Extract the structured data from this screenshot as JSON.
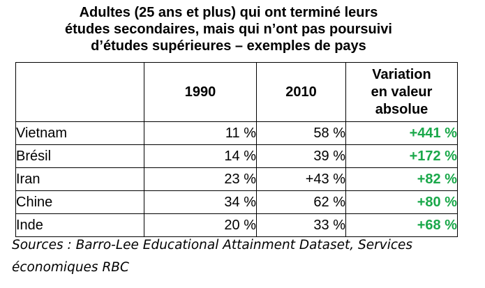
{
  "title_lines": [
    "Adultes (25 ans et plus) qui ont terminé leurs",
    "études secondaires, mais qui n’ont pas poursuivi",
    "d’études supérieures – exemples de pays"
  ],
  "sources_lines": [
    "Sources : Barro-Lee Educational Attainment Dataset, Services",
    "économiques RBC"
  ],
  "colors": {
    "variation_text": "#1aa84a",
    "border": "#000000",
    "text": "#000000"
  },
  "chart_data": {
    "type": "table",
    "title": "Adultes (25 ans et plus) qui ont terminé leurs études secondaires, mais qui n’ont pas poursuivi d’études supérieures – exemples de pays",
    "columns": [
      "",
      "1990",
      "2010",
      "Variation en valeur absolue"
    ],
    "header_variation_lines": [
      "Variation",
      "en valeur",
      "absolue"
    ],
    "rows": [
      {
        "country": "Vietnam",
        "v1990": "11 %",
        "v2010": "58 %",
        "variation": "+441 %"
      },
      {
        "country": "Brésil",
        "v1990": "14 %",
        "v2010": "39 %",
        "variation": "+172 %"
      },
      {
        "country": "Iran",
        "v1990": "23 %",
        "v2010": "+43 %",
        "variation": "+82 %"
      },
      {
        "country": "Chine",
        "v1990": "34 %",
        "v2010": "62 %",
        "variation": "+80 %"
      },
      {
        "country": "Inde",
        "v1990": "20 %",
        "v2010": "33 %",
        "variation": "+68 %"
      }
    ]
  }
}
